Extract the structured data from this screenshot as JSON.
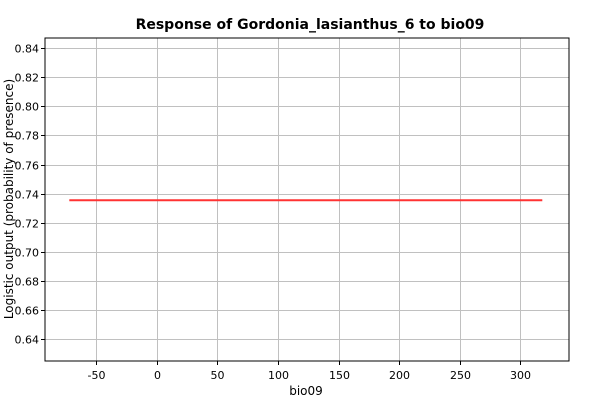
{
  "chart_data": {
    "type": "line",
    "title": "Response of Gordonia_lasianthus_6 to bio09",
    "xlabel": "bio09",
    "ylabel": "Logistic output (probability of presence)",
    "xlim": [
      -92,
      340
    ],
    "ylim": [
      0.625,
      0.847
    ],
    "xticks": [
      -50,
      0,
      50,
      100,
      150,
      200,
      250,
      300
    ],
    "xtick_labels": [
      "-50",
      "0",
      "50",
      "100",
      "150",
      "200",
      "250",
      "300"
    ],
    "yticks": [
      0.64,
      0.66,
      0.68,
      0.7,
      0.72,
      0.74,
      0.76,
      0.78,
      0.8,
      0.82,
      0.84
    ],
    "ytick_labels": [
      "0.64",
      "0.66",
      "0.68",
      "0.70",
      "0.72",
      "0.74",
      "0.76",
      "0.78",
      "0.80",
      "0.82",
      "0.84"
    ],
    "grid": true,
    "series": [
      {
        "color": "#ff3333",
        "x": [
          -72,
          318
        ],
        "y": [
          0.7355,
          0.7355
        ]
      }
    ]
  }
}
